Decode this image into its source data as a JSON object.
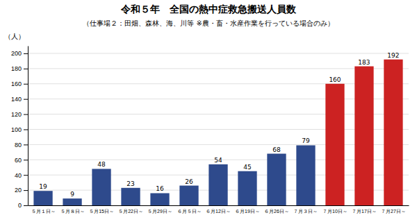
{
  "chart_data": {
    "type": "bar",
    "title": "令和５年　全国の熱中症救急搬送人員数",
    "subtitle": "（仕事場２：田畑、森林、海、川等 ※農・畜・水産作業を行っている場合のみ）",
    "ylabel": "（人）",
    "categories": [
      "５月１日～",
      "５月８日～",
      "５月15日～",
      "５月22日～",
      "５月29日～",
      "６月５日～",
      "６月12日～",
      "６月19日～",
      "６月26日～",
      "７月３日～",
      "７月10日～",
      "７月17日～",
      "７月27日～"
    ],
    "values": [
      19,
      9,
      48,
      23,
      16,
      26,
      54,
      45,
      68,
      79,
      160,
      183,
      192
    ],
    "colors": [
      "#2E4A8C",
      "#2E4A8C",
      "#2E4A8C",
      "#2E4A8C",
      "#2E4A8C",
      "#2E4A8C",
      "#2E4A8C",
      "#2E4A8C",
      "#2E4A8C",
      "#2E4A8C",
      "#CC2222",
      "#CC2222",
      "#CC2222"
    ],
    "ylim": [
      0,
      210
    ],
    "yticks": [
      0,
      20,
      40,
      60,
      80,
      100,
      120,
      140,
      160,
      180,
      200
    ],
    "grid": true,
    "data_labels": true
  }
}
